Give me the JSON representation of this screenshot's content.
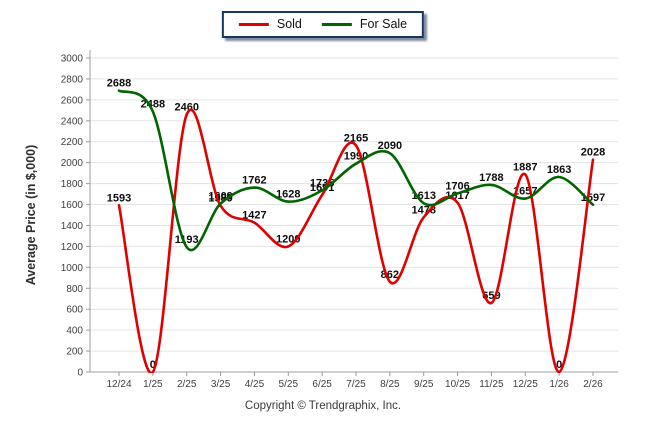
{
  "legend": {
    "items": [
      {
        "label": "Sold",
        "color": "#e00000"
      },
      {
        "label": "For Sale",
        "color": "#006400"
      }
    ]
  },
  "chart_data": {
    "type": "line",
    "title": "",
    "ylabel": "Average Price (in $,000)",
    "xlabel": "",
    "ylim": [
      0,
      3000
    ],
    "ytick_step": 200,
    "grid": "horizontal",
    "legend_position": "top-center",
    "smooth": true,
    "data_labels": true,
    "categories": [
      "12/24",
      "1/25",
      "2/25",
      "3/25",
      "4/25",
      "5/25",
      "6/25",
      "7/25",
      "8/25",
      "9/25",
      "10/25",
      "11/25",
      "12/25",
      "1/26",
      "2/26"
    ],
    "series": [
      {
        "name": "Sold",
        "color": "#e00000",
        "values": [
          1593,
          0,
          2460,
          1589,
          1427,
          1200,
          1691,
          2165,
          862,
          1478,
          1617,
          659,
          1887,
          0,
          2028
        ]
      },
      {
        "name": "For Sale",
        "color": "#006400",
        "values": [
          2688,
          2488,
          1193,
          1609,
          1762,
          1628,
          1735,
          1990,
          2090,
          1613,
          1706,
          1788,
          1657,
          1863,
          1597
        ]
      }
    ]
  },
  "footer": {
    "copyright": "Copyright © Trendgraphix, Inc."
  },
  "colors": {
    "grid": "#e3e3e3",
    "axis": "#9c9c9c",
    "tick_text": "#3f3f3f",
    "label_text": "#0d0d0d",
    "legend_border": "#17365d",
    "background": "#ffffff"
  }
}
